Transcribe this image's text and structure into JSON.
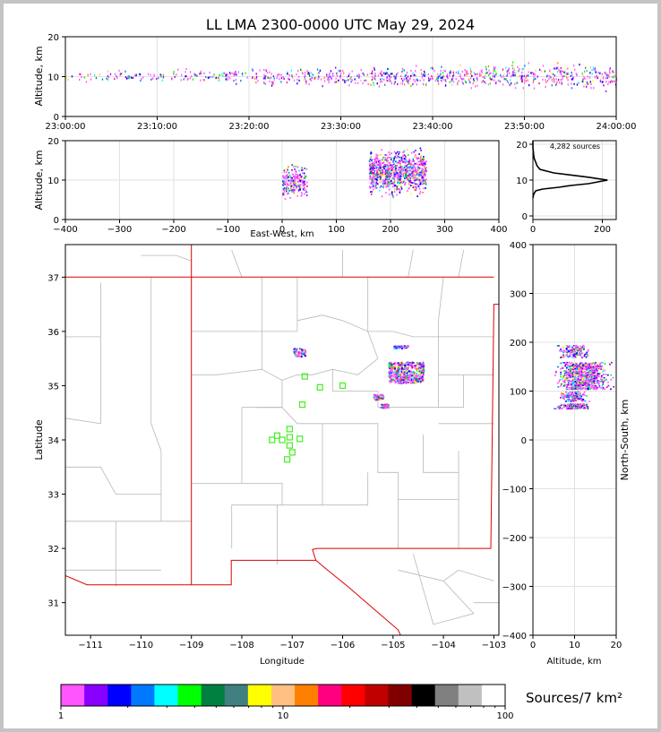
{
  "title": "LL LMA 2300-0000 UTC May 29, 2024",
  "colorbar": {
    "label": "Sources/7 km²",
    "ticks": [
      "1",
      "10",
      "100"
    ],
    "colors": [
      "#ff55ff",
      "#8800ff",
      "#0000ff",
      "#0078ff",
      "#00ffff",
      "#00ff00",
      "#008040",
      "#408080",
      "#ffff00",
      "#ffc080",
      "#ff8000",
      "#ff0080",
      "#ff0000",
      "#c00000",
      "#800000",
      "#000000",
      "#808080",
      "#c0c0c0",
      "#ffffff"
    ]
  },
  "chart_data": [
    {
      "id": "time-height",
      "type": "scatter",
      "xlabel": "",
      "ylabel": "Altitude, km",
      "x_ticks": [
        "23:00:00",
        "23:10:00",
        "23:20:00",
        "23:30:00",
        "23:40:00",
        "23:50:00",
        "24:00:00"
      ],
      "xlim": [
        "23:00:00",
        "24:00:00"
      ],
      "ylim": [
        0,
        20
      ],
      "y_ticks": [
        0,
        10,
        20
      ],
      "grid": true
    },
    {
      "id": "ew-height",
      "type": "scatter",
      "xlabel": "East-West, km",
      "ylabel": "Altitude, km",
      "xlim": [
        -400,
        400
      ],
      "x_ticks": [
        -400,
        -300,
        -200,
        -100,
        0,
        100,
        200,
        300,
        400
      ],
      "ylim": [
        0,
        20
      ],
      "y_ticks": [
        0,
        10,
        20
      ],
      "clusters": [
        {
          "x": [
            0,
            45
          ],
          "alt": [
            4,
            15
          ]
        },
        {
          "x": [
            160,
            265
          ],
          "alt": [
            5,
            19
          ]
        }
      ],
      "grid": true
    },
    {
      "id": "altitude-histogram",
      "type": "line",
      "annotation": "4,282 sources",
      "xlim": [
        0,
        240
      ],
      "x_ticks": [
        0,
        200
      ],
      "ylim": [
        -1,
        21
      ],
      "y_ticks": [
        0,
        10,
        20
      ],
      "x": [
        0,
        2,
        8,
        28,
        75,
        110,
        160,
        215,
        160,
        60,
        20,
        12,
        8,
        4,
        2,
        1,
        0,
        0
      ],
      "y": [
        5,
        6,
        7,
        7.5,
        8,
        8.5,
        9,
        10,
        10.8,
        12,
        13,
        14,
        15,
        16,
        17,
        18,
        19,
        21
      ]
    },
    {
      "id": "plan-view",
      "type": "scatter",
      "xlabel": "Longitude",
      "ylabel": "Latitude",
      "xlim": [
        -111.5,
        -102.9
      ],
      "ylim": [
        30.4,
        37.6
      ],
      "x_ticks": [
        -111,
        -110,
        -109,
        -108,
        -107,
        -106,
        -105,
        -104,
        -103
      ],
      "y_ticks": [
        31,
        32,
        33,
        34,
        35,
        36,
        37
      ],
      "stations": [
        {
          "lon": -106.75,
          "lat": 35.17
        },
        {
          "lon": -106.45,
          "lat": 34.97
        },
        {
          "lon": -106.0,
          "lat": 35.0
        },
        {
          "lon": -106.8,
          "lat": 34.65
        },
        {
          "lon": -107.05,
          "lat": 34.2
        },
        {
          "lon": -107.3,
          "lat": 34.08
        },
        {
          "lon": -107.05,
          "lat": 34.05
        },
        {
          "lon": -106.85,
          "lat": 34.02
        },
        {
          "lon": -107.4,
          "lat": 34.0
        },
        {
          "lon": -107.2,
          "lat": 34.0
        },
        {
          "lon": -107.05,
          "lat": 33.9
        },
        {
          "lon": -107.0,
          "lat": 33.77
        },
        {
          "lon": -107.1,
          "lat": 33.64
        }
      ],
      "clusters": [
        {
          "lon": [
            -107.0,
            -106.75
          ],
          "lat": [
            35.55,
            35.7
          ]
        },
        {
          "lon": [
            -105.0,
            -104.7
          ],
          "lat": [
            35.7,
            35.75
          ]
        },
        {
          "lon": [
            -105.1,
            -104.4
          ],
          "lat": [
            35.05,
            35.45
          ]
        },
        {
          "lon": [
            -105.4,
            -105.2
          ],
          "lat": [
            34.75,
            34.85
          ]
        },
        {
          "lon": [
            -105.25,
            -105.1
          ],
          "lat": [
            34.6,
            34.67
          ]
        }
      ]
    },
    {
      "id": "ns-height",
      "type": "scatter",
      "xlabel": "Altitude, km",
      "ylabel": "North-South, km",
      "xlim": [
        0,
        20
      ],
      "x_ticks": [
        0,
        10,
        20
      ],
      "ylim": [
        -400,
        400
      ],
      "y_ticks": [
        -400,
        -300,
        -200,
        -100,
        0,
        100,
        200,
        300,
        400
      ],
      "clusters": [
        {
          "ns": [
            170,
            195
          ],
          "alt": [
            5,
            14
          ]
        },
        {
          "ns": [
            105,
            160
          ],
          "alt": [
            4,
            20
          ]
        },
        {
          "ns": [
            80,
            100
          ],
          "alt": [
            5,
            14
          ]
        },
        {
          "ns": [
            65,
            75
          ],
          "alt": [
            4,
            15
          ]
        }
      ],
      "grid": true
    }
  ]
}
